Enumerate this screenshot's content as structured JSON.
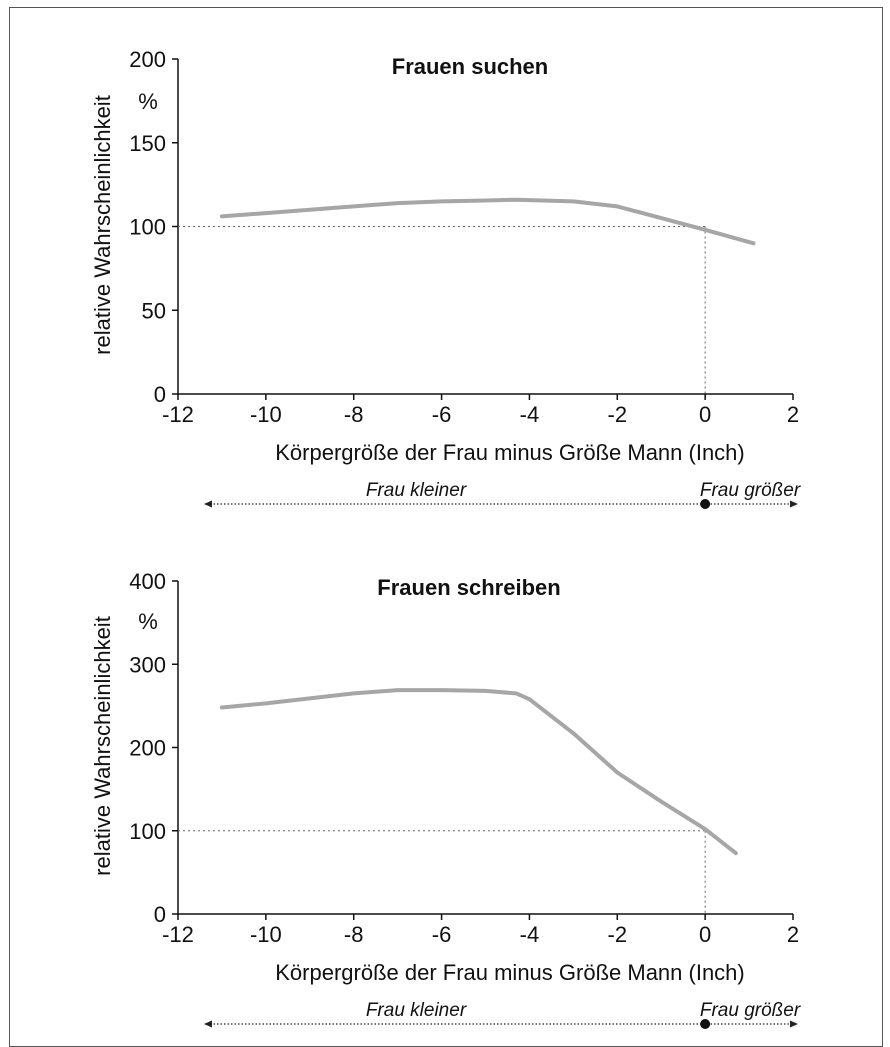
{
  "chart_data": [
    {
      "type": "line",
      "title": "Frauen suchen",
      "unit": "%",
      "xlabel": "Körpergröße der Frau minus Größe Mann (Inch)",
      "ylabel": "relative Wahrscheinlichkeit",
      "xlim": [
        -12,
        2
      ],
      "ylim": [
        0,
        200
      ],
      "xticks": [
        "-12",
        "-10",
        "-8",
        "-6",
        "-4",
        "-2",
        "0",
        "2"
      ],
      "yticks": [
        "0",
        "50",
        "100",
        "150",
        "200"
      ],
      "reference": {
        "y": 100,
        "x": 0
      },
      "series": [
        {
          "color": "#a6a6a6",
          "x": [
            -11,
            -10,
            -9,
            -8,
            -7,
            -6,
            -5,
            -4.3,
            -3,
            -2,
            -1,
            0,
            1.1
          ],
          "y": [
            106,
            108,
            110,
            112,
            114,
            115,
            115.5,
            116,
            115,
            112,
            105,
            98,
            90
          ]
        }
      ],
      "arrow_labels": {
        "left": "Frau kleiner",
        "right": "Frau größer"
      }
    },
    {
      "type": "line",
      "title": "Frauen schreiben",
      "unit": "%",
      "xlabel": "Körpergröße der Frau minus Größe Mann (Inch)",
      "ylabel": "relative Wahrscheinlichkeit",
      "xlim": [
        -12,
        2
      ],
      "ylim": [
        0,
        400
      ],
      "xticks": [
        "-12",
        "-10",
        "-8",
        "-6",
        "-4",
        "-2",
        "0",
        "2"
      ],
      "yticks": [
        "0",
        "100",
        "200",
        "300",
        "400"
      ],
      "reference": {
        "y": 100,
        "x": 0
      },
      "series": [
        {
          "color": "#a6a6a6",
          "x": [
            -11,
            -10,
            -9,
            -8,
            -7,
            -6,
            -5,
            -4.3,
            -4,
            -3,
            -2,
            -1,
            0,
            0.7
          ],
          "y": [
            248,
            253,
            259,
            265,
            269,
            269,
            268,
            265,
            258,
            217,
            170,
            135,
            102,
            73
          ]
        }
      ],
      "arrow_labels": {
        "left": "Frau kleiner",
        "right": "Frau größer"
      }
    }
  ]
}
